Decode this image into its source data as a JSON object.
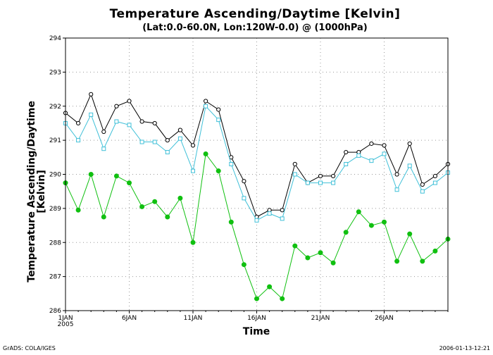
{
  "chart_data": {
    "type": "line",
    "title": "Temperature Ascending/Daytime [Kelvin]",
    "subtitle": "(Lat:0.0-60.0N, Lon:120W-0.0) @ (1000hPa)",
    "xlabel": "Time",
    "ylabel_line1": "Temperature Ascending/Daytime",
    "ylabel_line2": "[Kelvin]",
    "ylim": [
      286,
      294
    ],
    "yticks": [
      286,
      287,
      288,
      289,
      290,
      291,
      292,
      293,
      294
    ],
    "xlim": [
      1,
      31
    ],
    "xticks": [
      {
        "day": 1,
        "label": "1JAN",
        "sublabel": "2005"
      },
      {
        "day": 6,
        "label": "6JAN",
        "sublabel": ""
      },
      {
        "day": 11,
        "label": "11JAN",
        "sublabel": ""
      },
      {
        "day": 16,
        "label": "16JAN",
        "sublabel": ""
      },
      {
        "day": 21,
        "label": "21JAN",
        "sublabel": ""
      },
      {
        "day": 26,
        "label": "26JAN",
        "sublabel": ""
      }
    ],
    "grid": true,
    "series": [
      {
        "color": "#000000",
        "marker": "open-circle",
        "x": [
          1,
          2,
          3,
          4,
          5,
          6,
          7,
          8,
          9,
          10,
          11,
          12,
          13,
          14,
          15,
          16,
          17,
          18,
          19,
          20,
          21,
          22,
          23,
          24,
          25,
          26,
          27,
          28,
          29,
          30,
          31
        ],
        "values": [
          291.8,
          291.5,
          292.35,
          291.25,
          292.0,
          292.15,
          291.55,
          291.5,
          291.0,
          291.3,
          290.85,
          292.15,
          291.9,
          290.5,
          289.8,
          288.75,
          288.95,
          288.95,
          290.3,
          289.75,
          289.95,
          289.95,
          290.65,
          290.65,
          290.9,
          290.85,
          290.0,
          290.9,
          289.7,
          289.95,
          290.3
        ]
      },
      {
        "color": "#40c0d8",
        "marker": "open-square",
        "x": [
          1,
          2,
          3,
          4,
          5,
          6,
          7,
          8,
          9,
          10,
          11,
          12,
          13,
          14,
          15,
          16,
          17,
          18,
          19,
          20,
          21,
          22,
          23,
          24,
          25,
          26,
          27,
          28,
          29,
          30,
          31
        ],
        "values": [
          291.5,
          291.0,
          291.75,
          290.75,
          291.55,
          291.45,
          290.95,
          290.95,
          290.65,
          291.05,
          290.1,
          292.0,
          291.6,
          290.3,
          289.3,
          288.65,
          288.85,
          288.7,
          290.0,
          289.75,
          289.75,
          289.75,
          290.3,
          290.55,
          290.4,
          290.6,
          289.55,
          290.25,
          289.5,
          289.75,
          290.05
        ]
      },
      {
        "color": "#10c010",
        "marker": "filled-circle",
        "x": [
          1,
          2,
          3,
          4,
          5,
          6,
          7,
          8,
          9,
          10,
          11,
          12,
          13,
          14,
          15,
          16,
          17,
          18,
          19,
          20,
          21,
          22,
          23,
          24,
          25,
          26,
          27,
          28,
          29,
          30,
          31
        ],
        "values": [
          289.75,
          288.95,
          290.0,
          288.75,
          289.95,
          289.75,
          289.05,
          289.2,
          288.75,
          289.3,
          288.0,
          290.6,
          290.1,
          288.6,
          287.35,
          286.35,
          286.7,
          286.35,
          287.9,
          287.55,
          287.7,
          287.4,
          288.3,
          288.9,
          288.5,
          288.6,
          287.45,
          288.25,
          287.45,
          287.75,
          288.1
        ]
      }
    ]
  },
  "footer": {
    "left": "GrADS: COLA/IGES",
    "right": "2006-01-13-12:21"
  }
}
